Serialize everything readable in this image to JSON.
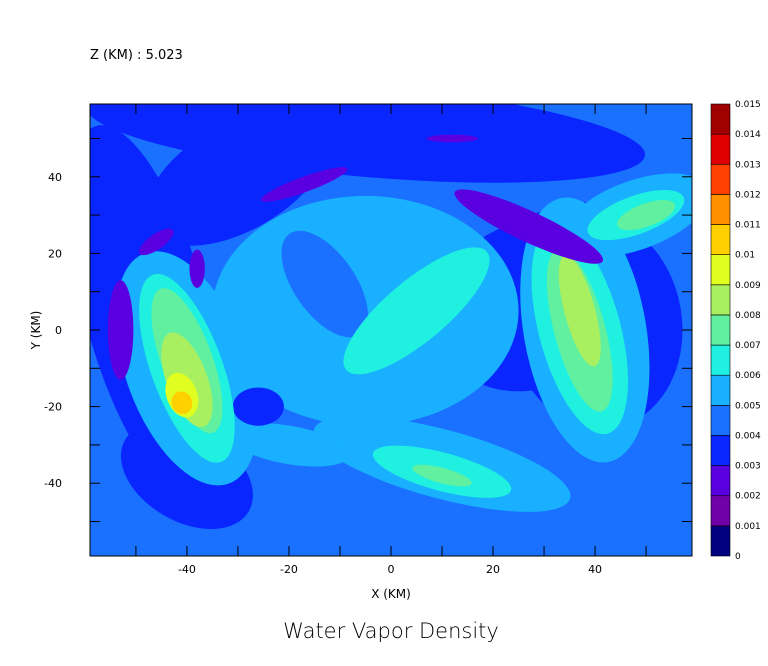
{
  "chart_data": {
    "type": "contour",
    "title": "Water Vapor Density",
    "subtitle": "Z (KM) : 5.023",
    "x_label": "X (KM)",
    "y_label": "Y (KM)",
    "xlim": [
      -59,
      59
    ],
    "ylim": [
      -59,
      59
    ],
    "xticks": [
      -40,
      -20,
      0,
      20,
      40
    ],
    "yticks": [
      -40,
      -20,
      0,
      20,
      40
    ],
    "x_minor_ticks": [
      -50,
      -30,
      -10,
      10,
      30,
      50
    ],
    "y_minor_ticks": [
      -50,
      -30,
      -10,
      10,
      30,
      50
    ],
    "colorbar": {
      "levels": [
        0,
        0.001,
        0.002,
        0.003,
        0.004,
        0.005,
        0.006,
        0.007,
        0.008,
        0.009,
        0.01,
        0.011,
        0.012,
        0.013,
        0.014,
        0.015
      ],
      "colors": [
        "#000080",
        "#7000a8",
        "#5a00e0",
        "#0a26ff",
        "#1a70ff",
        "#18b0ff",
        "#20f0e0",
        "#60f0a0",
        "#a8f060",
        "#e0ff20",
        "#ffd000",
        "#ff9000",
        "#ff4000",
        "#e00000",
        "#a00000"
      ]
    }
  }
}
